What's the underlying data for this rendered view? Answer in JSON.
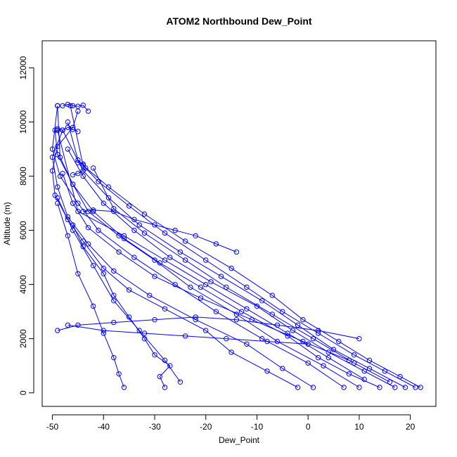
{
  "chart_data": {
    "type": "scatter",
    "title": "ATOM2 Northbound Dew_Point",
    "xlabel": "Dew_Point",
    "ylabel": "Altitude (m)",
    "xlim": [
      -52,
      25
    ],
    "ylim": [
      -500,
      13000
    ],
    "x_ticks": [
      -50,
      -40,
      -30,
      -20,
      -10,
      0,
      10,
      20
    ],
    "y_ticks": [
      0,
      2000,
      4000,
      6000,
      8000,
      10000,
      12000
    ],
    "x_tick_labels": [
      "-50",
      "-40",
      "-30",
      "-20",
      "-10",
      "0",
      "10",
      "20"
    ],
    "y_tick_labels": [
      "0",
      "2000",
      "4000",
      "6000",
      "8000",
      "10000",
      "12000"
    ],
    "marker": "open-circle",
    "connected": true,
    "color": "#0000ff",
    "series": [
      {
        "x": [
          -2,
          -8,
          -15,
          -20,
          -28,
          -35,
          -40,
          -44,
          -47,
          -49.5,
          -50,
          -49,
          -46,
          -45
        ],
        "y": [
          200,
          800,
          1500,
          2300,
          3100,
          3800,
          4600,
          5600,
          6400,
          7300,
          8200,
          9100,
          9800,
          10400
        ]
      },
      {
        "x": [
          1,
          -5,
          -12,
          -22,
          -31,
          -38,
          -43,
          -47,
          -49,
          -50,
          -48
        ],
        "y": [
          200,
          900,
          1800,
          2700,
          3600,
          4500,
          5500,
          6500,
          7600,
          8700,
          9700
        ]
      },
      {
        "x": [
          7,
          0,
          -9,
          -18,
          -26,
          -34,
          -41,
          -45,
          -48.5,
          -50,
          -49
        ],
        "y": [
          200,
          1100,
          2000,
          3000,
          4000,
          5000,
          6000,
          7000,
          8000,
          9000,
          10600
        ]
      },
      {
        "x": [
          10,
          3,
          -6,
          -14,
          -23,
          -30,
          -37,
          -43,
          -46,
          -49,
          -49.5
        ],
        "y": [
          200,
          1000,
          1900,
          2900,
          3900,
          4900,
          5800,
          6700,
          7700,
          8800,
          9700
        ]
      },
      {
        "x": [
          14,
          8,
          2,
          -4,
          -13,
          -21,
          -29,
          -36,
          -42,
          -46,
          -48.5,
          -49
        ],
        "y": [
          200,
          700,
          1300,
          2100,
          3000,
          3900,
          4800,
          5700,
          6700,
          7700,
          8700,
          10600
        ]
      },
      {
        "x": [
          17,
          11,
          4,
          -3,
          -10,
          -19,
          -27,
          -34,
          -40,
          -44,
          -47
        ],
        "y": [
          200,
          800,
          1500,
          2300,
          3200,
          4100,
          5000,
          6000,
          7000,
          8000,
          9000
        ]
      },
      {
        "x": [
          19,
          12,
          5,
          -2,
          -9,
          -17,
          -25,
          -33,
          -39,
          -44,
          -48
        ],
        "y": [
          200,
          900,
          1600,
          2500,
          3400,
          4300,
          5200,
          6200,
          7200,
          8200,
          9700
        ]
      },
      {
        "x": [
          21,
          15,
          9,
          2,
          -5,
          -12,
          -20,
          -28,
          -35,
          -41,
          -45,
          -47
        ],
        "y": [
          200,
          800,
          1400,
          2200,
          3000,
          3900,
          4900,
          5900,
          6900,
          7800,
          8600,
          10000
        ]
      },
      {
        "x": [
          22,
          18,
          12,
          6,
          -1,
          -7,
          -15,
          -24,
          -32,
          -39,
          -44,
          -46.5
        ],
        "y": [
          200,
          600,
          1200,
          1900,
          2700,
          3600,
          4600,
          5600,
          6600,
          7600,
          8400,
          10600
        ]
      },
      {
        "x": [
          -28,
          -29,
          -27,
          -30,
          -32,
          -35,
          -38,
          -40,
          -44,
          -46
        ],
        "y": [
          200,
          600,
          1000,
          1400,
          2000,
          2800,
          3600,
          4400,
          5400,
          6200
        ]
      },
      {
        "x": [
          -36,
          -37,
          -38,
          -40,
          -42,
          -45,
          -47,
          -49
        ],
        "y": [
          200,
          700,
          1300,
          2200,
          3200,
          4400,
          5800,
          7000
        ]
      },
      {
        "x": [
          -25,
          -28,
          -33,
          -38,
          -42,
          -46,
          -49
        ],
        "y": [
          400,
          1200,
          2300,
          3400,
          4700,
          6000,
          7200
        ]
      },
      {
        "x": [
          11,
          4,
          -4,
          -12,
          -20,
          -28,
          -36,
          -45,
          -49
        ],
        "y": [
          500,
          1300,
          2200,
          3100,
          4000,
          4900,
          5800,
          6700,
          9700
        ]
      },
      {
        "x": [
          16,
          9,
          1,
          -7,
          -16,
          -24,
          -32,
          -38,
          -42
        ],
        "y": [
          400,
          1100,
          2000,
          2900,
          3900,
          4900,
          5900,
          6800,
          8300
        ]
      },
      {
        "x": [
          8,
          -1,
          -11,
          -21,
          -30,
          -37,
          -43,
          -46,
          -48
        ],
        "y": [
          1200,
          1900,
          2700,
          3500,
          4300,
          5200,
          6100,
          7000,
          8100
        ]
      },
      {
        "x": [
          -49,
          -45,
          -38,
          -30,
          -22,
          -14,
          -6,
          2,
          10
        ],
        "y": [
          2300,
          2500,
          2600,
          2700,
          2800,
          2700,
          2500,
          2300,
          2000
        ]
      },
      {
        "x": [
          -47,
          -40,
          -32,
          -24,
          -16,
          -8,
          0
        ],
        "y": [
          2500,
          2300,
          2200,
          2100,
          2000,
          1900,
          1800
        ]
      },
      {
        "x": [
          -44,
          -42,
          -38,
          -34,
          -30,
          -26,
          -22,
          -18,
          -14
        ],
        "y": [
          6700,
          6750,
          6700,
          6400,
          6200,
          6000,
          5800,
          5500,
          5200
        ]
      },
      {
        "x": [
          -48,
          -47,
          -46,
          -45,
          -44,
          -43
        ],
        "y": [
          10600,
          10650,
          10600,
          10580,
          10620,
          10400
        ]
      },
      {
        "x": [
          -49,
          -48,
          -47,
          -46,
          -45
        ],
        "y": [
          9750,
          9700,
          9800,
          9720,
          9650
        ]
      },
      {
        "x": [
          -45,
          -44,
          -43.5,
          -44,
          -45,
          -46
        ],
        "y": [
          8500,
          8450,
          8300,
          8200,
          8100,
          8050
        ]
      }
    ]
  }
}
